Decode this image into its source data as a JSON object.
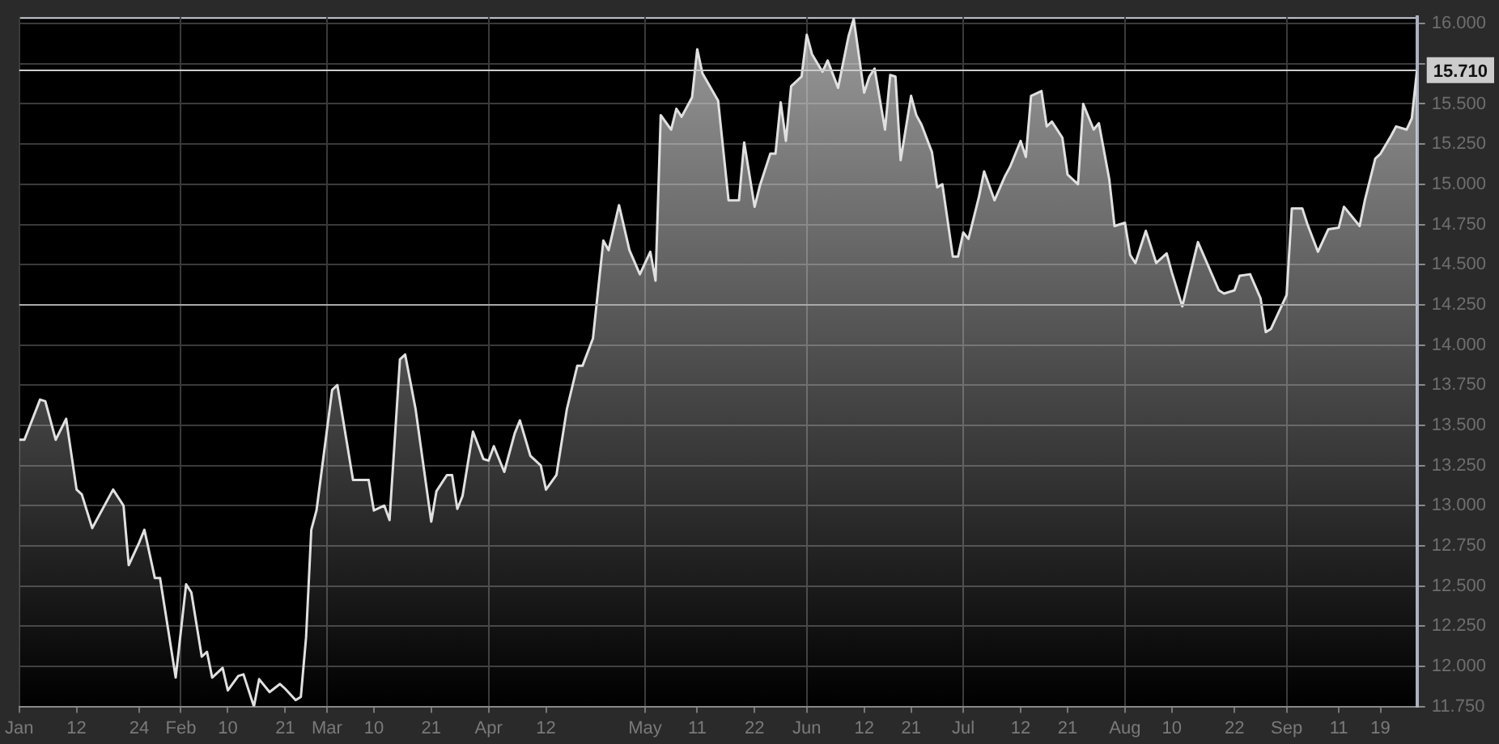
{
  "chart_data": {
    "type": "area",
    "x": [
      "--01-01",
      "--01-02",
      "--01-05",
      "--01-06",
      "--01-08",
      "--01-10",
      "--01-12",
      "--01-13",
      "--01-15",
      "--01-19",
      "--01-21",
      "--01-22",
      "--01-24",
      "--01-25",
      "--01-27",
      "--01-28",
      "--01-31",
      "--02-02",
      "--02-03",
      "--02-05",
      "--02-06",
      "--02-07",
      "--02-09",
      "--02-10",
      "--02-12",
      "--02-13",
      "--02-15",
      "--02-16",
      "--02-18",
      "--02-20",
      "--02-21",
      "--02-23",
      "--02-24",
      "--02-25",
      "--02-26",
      "--02-27",
      "--03-02",
      "--03-03",
      "--03-06",
      "--03-09",
      "--03-10",
      "--03-12",
      "--03-13",
      "--03-15",
      "--03-16",
      "--03-18",
      "--03-21",
      "--03-22",
      "--03-24",
      "--03-25",
      "--03-26",
      "--03-27",
      "--03-29",
      "--03-31",
      "--04-01",
      "--04-02",
      "--04-04",
      "--04-06",
      "--04-07",
      "--04-09",
      "--04-11",
      "--04-12",
      "--04-14",
      "--04-16",
      "--04-18",
      "--04-19",
      "--04-21",
      "--04-23",
      "--04-24",
      "--04-26",
      "--04-28",
      "--04-30",
      "--05-02",
      "--05-03",
      "--05-04",
      "--05-06",
      "--05-07",
      "--05-08",
      "--05-10",
      "--05-11",
      "--05-12",
      "--05-15",
      "--05-17",
      "--05-19",
      "--05-20",
      "--05-22",
      "--05-23",
      "--05-25",
      "--05-26",
      "--05-27",
      "--05-28",
      "--05-29",
      "--05-31",
      "--06-01",
      "--06-02",
      "--06-04",
      "--06-05",
      "--06-07",
      "--06-09",
      "--06-10",
      "--06-12",
      "--06-13",
      "--06-14",
      "--06-16",
      "--06-17",
      "--06-18",
      "--06-19",
      "--06-21",
      "--06-22",
      "--06-23",
      "--06-25",
      "--06-26",
      "--06-27",
      "--06-29",
      "--06-30",
      "--07-01",
      "--07-02",
      "--07-04",
      "--07-05",
      "--07-07",
      "--07-09",
      "--07-10",
      "--07-12",
      "--07-13",
      "--07-14",
      "--07-16",
      "--07-17",
      "--07-18",
      "--07-20",
      "--07-21",
      "--07-23",
      "--07-24",
      "--07-26",
      "--07-27",
      "--07-29",
      "--07-30",
      "--08-01",
      "--08-02",
      "--08-03",
      "--08-05",
      "--08-07",
      "--08-09",
      "--08-10",
      "--08-12",
      "--08-15",
      "--08-19",
      "--08-20",
      "--08-22",
      "--08-23",
      "--08-25",
      "--08-27",
      "--08-28",
      "--08-29",
      "--09-01",
      "--09-02",
      "--09-04",
      "--09-05",
      "--09-07",
      "--09-09",
      "--09-11",
      "--09-12",
      "--09-15",
      "--09-16",
      "--09-18",
      "--09-19",
      "--09-21",
      "--09-22",
      "--09-24",
      "--09-25",
      "--09-26"
    ],
    "series": [
      {
        "color": "#e0e0e0",
        "values": [
          13.41,
          13.41,
          13.66,
          13.65,
          13.41,
          13.54,
          13.1,
          13.07,
          12.86,
          13.1,
          13.0,
          12.63,
          12.77,
          12.85,
          12.55,
          12.55,
          11.93,
          12.51,
          12.46,
          12.06,
          12.09,
          11.93,
          11.99,
          11.85,
          11.94,
          11.95,
          11.75,
          11.92,
          11.84,
          11.89,
          11.86,
          11.79,
          11.81,
          12.18,
          12.85,
          12.97,
          13.72,
          13.75,
          13.16,
          13.16,
          12.97,
          13.0,
          12.91,
          13.91,
          13.94,
          13.6,
          12.9,
          13.09,
          13.19,
          13.19,
          12.98,
          13.06,
          13.46,
          13.29,
          13.28,
          13.37,
          13.21,
          13.45,
          13.53,
          13.31,
          13.25,
          13.1,
          13.19,
          13.6,
          13.87,
          13.87,
          14.04,
          14.65,
          14.59,
          14.87,
          14.59,
          14.44,
          14.58,
          14.4,
          15.43,
          15.34,
          15.47,
          15.42,
          15.54,
          15.84,
          15.69,
          15.52,
          14.9,
          14.9,
          15.26,
          14.86,
          14.99,
          15.19,
          15.19,
          15.51,
          15.27,
          15.61,
          15.67,
          15.93,
          15.81,
          15.7,
          15.77,
          15.6,
          15.92,
          16.03,
          15.57,
          15.67,
          15.72,
          15.34,
          15.68,
          15.67,
          15.15,
          15.55,
          15.43,
          15.37,
          15.2,
          14.98,
          15.0,
          14.55,
          14.55,
          14.7,
          14.66,
          14.92,
          15.08,
          14.9,
          15.05,
          15.11,
          15.27,
          15.17,
          15.55,
          15.58,
          15.36,
          15.39,
          15.29,
          15.06,
          15.0,
          15.5,
          15.34,
          15.38,
          15.03,
          14.74,
          14.76,
          14.56,
          14.51,
          14.71,
          14.51,
          14.57,
          14.45,
          14.24,
          14.64,
          14.34,
          14.32,
          14.34,
          14.43,
          14.44,
          14.29,
          14.08,
          14.1,
          14.31,
          14.85,
          14.85,
          14.75,
          14.58,
          14.72,
          14.73,
          14.86,
          14.74,
          14.9,
          15.16,
          15.19,
          15.3,
          15.36,
          15.34,
          15.41,
          15.71
        ]
      }
    ],
    "xlim": [
      "--01-01",
      "--09-26"
    ],
    "xticks": [
      {
        "value": "--01-01",
        "label": "Jan"
      },
      {
        "value": "--01-12",
        "label": "12"
      },
      {
        "value": "--01-24",
        "label": "24"
      },
      {
        "value": "--02-01",
        "label": "Feb"
      },
      {
        "value": "--02-10",
        "label": "10"
      },
      {
        "value": "--02-21",
        "label": "21"
      },
      {
        "value": "--03-01",
        "label": "Mar"
      },
      {
        "value": "--03-10",
        "label": "10"
      },
      {
        "value": "--03-21",
        "label": "21"
      },
      {
        "value": "--04-01",
        "label": "Apr"
      },
      {
        "value": "--04-12",
        "label": "12"
      },
      {
        "value": "--05-01",
        "label": "May"
      },
      {
        "value": "--05-11",
        "label": "11"
      },
      {
        "value": "--05-22",
        "label": "22"
      },
      {
        "value": "--06-01",
        "label": "Jun"
      },
      {
        "value": "--06-12",
        "label": "12"
      },
      {
        "value": "--06-21",
        "label": "21"
      },
      {
        "value": "--07-01",
        "label": "Jul"
      },
      {
        "value": "--07-12",
        "label": "12"
      },
      {
        "value": "--07-21",
        "label": "21"
      },
      {
        "value": "--08-01",
        "label": "Aug"
      },
      {
        "value": "--08-10",
        "label": "10"
      },
      {
        "value": "--08-22",
        "label": "22"
      },
      {
        "value": "--09-01",
        "label": "Sep"
      },
      {
        "value": "--09-11",
        "label": "11"
      },
      {
        "value": "--09-19",
        "label": "19"
      }
    ],
    "ylim": [
      11.75,
      16.04
    ],
    "yticks": [
      {
        "value": 11.75,
        "label": "11.750"
      },
      {
        "value": 12,
        "label": "12.000"
      },
      {
        "value": 12.25,
        "label": "12.250"
      },
      {
        "value": 12.5,
        "label": "12.500"
      },
      {
        "value": 12.75,
        "label": "12.750"
      },
      {
        "value": 13,
        "label": "13.000"
      },
      {
        "value": 13.25,
        "label": "13.250"
      },
      {
        "value": 13.5,
        "label": "13.500"
      },
      {
        "value": 13.75,
        "label": "13.750"
      },
      {
        "value": 14,
        "label": "14.000"
      },
      {
        "value": 14.25,
        "label": "14.250"
      },
      {
        "value": 14.5,
        "label": "14.500"
      },
      {
        "value": 14.75,
        "label": "14.750"
      },
      {
        "value": 15,
        "label": "15.000"
      },
      {
        "value": 15.25,
        "label": "15.250"
      },
      {
        "value": 15.5,
        "label": "15.500"
      },
      {
        "value": 15.75,
        "label": null
      },
      {
        "value": 16,
        "label": "16.000"
      }
    ],
    "ref_lines": [
      {
        "axis": "y",
        "value": 15.71,
        "label": "15.710",
        "color": "#cccccc"
      },
      {
        "axis": "y",
        "value": 14.25,
        "color": "#aaaaaa"
      }
    ],
    "grid": true,
    "legend": false,
    "marker": "none"
  }
}
